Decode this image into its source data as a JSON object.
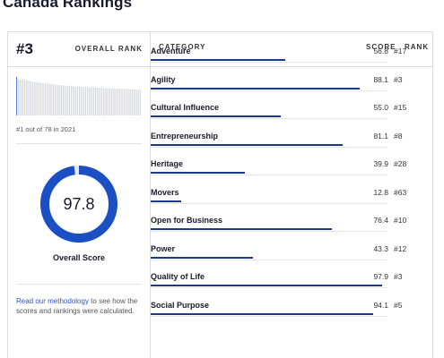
{
  "page": {
    "title": "Canada Rankings"
  },
  "overall": {
    "rank": "#3",
    "rank_label": "OVERALL RANK",
    "caption": "#1 out of 78 in 2021",
    "score": "97.8",
    "score_value": 97.8,
    "score_label": "Overall Score",
    "methodology_link": "Read our methodology",
    "methodology_text": " to see how the scores and rankings were calculated.",
    "history_scores": [
      100,
      95,
      94,
      93,
      93,
      92,
      91,
      90,
      90,
      89,
      88,
      88,
      87,
      86,
      86,
      85,
      84,
      84,
      83,
      83,
      82,
      82,
      81,
      81,
      80,
      80,
      79,
      79,
      78,
      78,
      78,
      77,
      77,
      77,
      76,
      76,
      76,
      75,
      75,
      75,
      75,
      74,
      74,
      74,
      74,
      73,
      73,
      73,
      73,
      72,
      72,
      72,
      72,
      72,
      71,
      71,
      71,
      71,
      71,
      70,
      70,
      70,
      70,
      70,
      70,
      69,
      69,
      69,
      69,
      69,
      69,
      68,
      68,
      68,
      68,
      68,
      68,
      67
    ],
    "highlight_index": 0
  },
  "table": {
    "headers": {
      "category": "CATEGORY",
      "score": "SCORE",
      "rank": "RANK"
    },
    "rows": [
      {
        "category": "Adventure",
        "score": "56.8",
        "rank": "#17",
        "value": 56.8
      },
      {
        "category": "Agility",
        "score": "88.1",
        "rank": "#3",
        "value": 88.1
      },
      {
        "category": "Cultural Influence",
        "score": "55.0",
        "rank": "#15",
        "value": 55.0
      },
      {
        "category": "Entrepreneurship",
        "score": "81.1",
        "rank": "#8",
        "value": 81.1
      },
      {
        "category": "Heritage",
        "score": "39.9",
        "rank": "#28",
        "value": 39.9
      },
      {
        "category": "Movers",
        "score": "12.8",
        "rank": "#63",
        "value": 12.8
      },
      {
        "category": "Open for Business",
        "score": "76.4",
        "rank": "#10",
        "value": 76.4
      },
      {
        "category": "Power",
        "score": "43.3",
        "rank": "#12",
        "value": 43.3
      },
      {
        "category": "Quality of Life",
        "score": "97.9",
        "rank": "#3",
        "value": 97.9
      },
      {
        "category": "Social Purpose",
        "score": "94.1",
        "rank": "#5",
        "value": 94.1
      }
    ]
  },
  "colors": {
    "accent": "#1b3a8c",
    "donut": "#1d4fc4",
    "donut_track": "#e6e8ee",
    "spark_bar": "#c9ccd4",
    "spark_highlight": "#2f62d0",
    "link": "#2755c9"
  }
}
